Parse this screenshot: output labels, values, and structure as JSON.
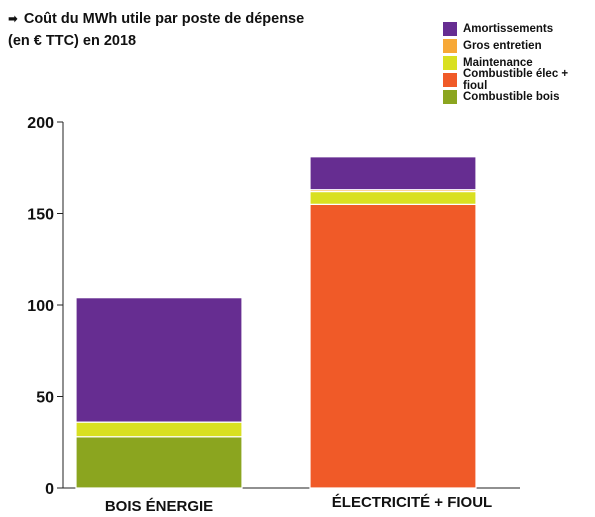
{
  "title": {
    "arrow": "➡",
    "line1": "Coût du MWh utile par poste de dépense",
    "line2": "(en € TTC) en 2018"
  },
  "chart_data": {
    "type": "bar",
    "stacked": true,
    "title": "Coût du MWh utile par poste de dépense (en € TTC) en 2018",
    "categories": [
      "BOIS ÉNERGIE",
      "ÉLECTRICITÉ + FIOUL"
    ],
    "ylim": [
      0,
      200
    ],
    "yticks": [
      0,
      50,
      100,
      150,
      200
    ],
    "grid": false,
    "legend_position": "top-right",
    "series": [
      {
        "name": "Combustible bois",
        "color": "#8ba51f",
        "values": [
          28,
          0
        ]
      },
      {
        "name": "Combustible élec + fioul",
        "color": "#f05a28",
        "values": [
          0,
          155
        ]
      },
      {
        "name": "Maintenance",
        "color": "#d9e021",
        "values": [
          8,
          7
        ]
      },
      {
        "name": "Gros entretien",
        "color": "#f7a836",
        "values": [
          0,
          1
        ]
      },
      {
        "name": "Amortissements",
        "color": "#662d91",
        "values": [
          68,
          18
        ]
      }
    ],
    "legend_order": [
      "Amortissements",
      "Gros entretien",
      "Maintenance",
      "Combustible élec + fioul",
      "Combustible bois"
    ]
  }
}
